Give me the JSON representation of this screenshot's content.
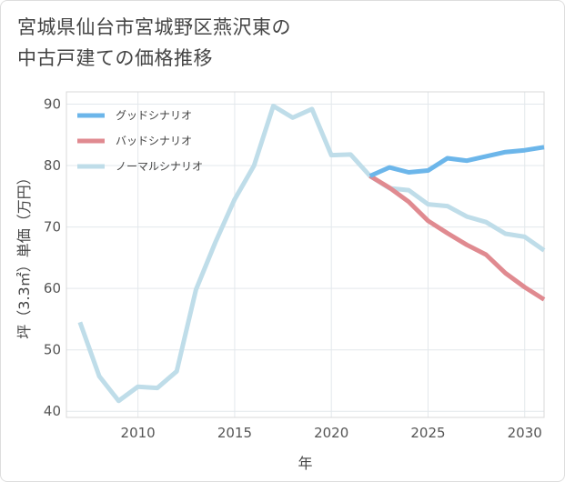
{
  "title": {
    "line1": "宮城県仙台市宮城野区燕沢東の",
    "line2": "中古戸建ての価格推移"
  },
  "chart_data": {
    "type": "line",
    "xlabel": "年",
    "ylabel": "坪（3.3㎡）単価（万円）",
    "xlim": [
      2006.3,
      2031
    ],
    "ylim": [
      39,
      92
    ],
    "xticks": [
      2010,
      2015,
      2020,
      2025,
      2030
    ],
    "yticks": [
      40,
      50,
      60,
      70,
      80,
      90
    ],
    "grid": true,
    "legend_position": "top-left",
    "series": [
      {
        "name": "グッドシナリオ",
        "color": "#6cb6ea",
        "x": [
          2022,
          2023,
          2024,
          2025,
          2026,
          2027,
          2028,
          2029,
          2030,
          2031
        ],
        "y": [
          78.3,
          79.7,
          78.9,
          79.2,
          81.2,
          80.8,
          81.5,
          82.2,
          82.5,
          83.0
        ]
      },
      {
        "name": "バッドシナリオ",
        "color": "#e08a90",
        "x": [
          2022,
          2023,
          2024,
          2025,
          2026,
          2027,
          2028,
          2029,
          2030,
          2031
        ],
        "y": [
          78.3,
          76.4,
          74.1,
          71.0,
          69.0,
          67.1,
          65.5,
          62.5,
          60.2,
          58.2
        ]
      },
      {
        "name": "ノーマルシナリオ",
        "color": "#bfdde9",
        "x": [
          2007,
          2008,
          2009,
          2010,
          2011,
          2012,
          2013,
          2014,
          2015,
          2016,
          2017,
          2018,
          2019,
          2020,
          2021,
          2022,
          2023,
          2024,
          2025,
          2026,
          2027,
          2028,
          2029,
          2030,
          2031
        ],
        "y": [
          54.5,
          45.7,
          41.7,
          44.0,
          43.8,
          46.5,
          59.8,
          67.5,
          74.5,
          80.0,
          89.7,
          87.8,
          89.2,
          81.7,
          81.8,
          78.3,
          76.3,
          76.0,
          73.7,
          73.4,
          71.7,
          70.8,
          68.9,
          68.4,
          66.2
        ]
      }
    ]
  }
}
